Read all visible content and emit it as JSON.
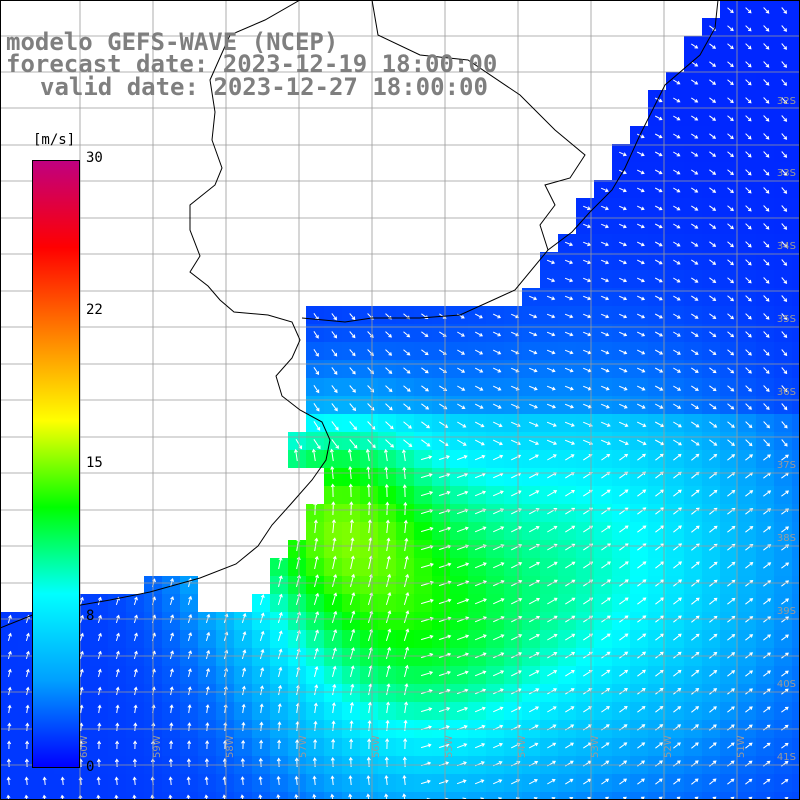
{
  "title": {
    "model": "modelo GEFS-WAVE (NCEP)",
    "forecast": "forecast date: 2023-12-19 18:00:00",
    "valid": "valid date: 2023-12-27 18:00:00"
  },
  "colorbar": {
    "unit": "[m/s]",
    "ticks": [
      "30",
      "22",
      "15",
      "8",
      "0"
    ],
    "tick_values": [
      30,
      22,
      15,
      8,
      0
    ],
    "min": 0,
    "max": 30,
    "colors": [
      "#0000ff",
      "#00a0ff",
      "#00ffff",
      "#00ff00",
      "#ffff00",
      "#ff8000",
      "#ff0000",
      "#c00080"
    ]
  },
  "map": {
    "lat_labels": [
      "32S",
      "33S",
      "34S",
      "35S",
      "36S",
      "37S",
      "38S",
      "39S",
      "40S",
      "41S"
    ],
    "lon_labels": [
      "60W",
      "59W",
      "58W",
      "57W",
      "56W",
      "55W",
      "54W",
      "53W",
      "52W",
      "51W"
    ],
    "land_color": "#ffffff",
    "grid_color": "#9a9a9a"
  }
}
